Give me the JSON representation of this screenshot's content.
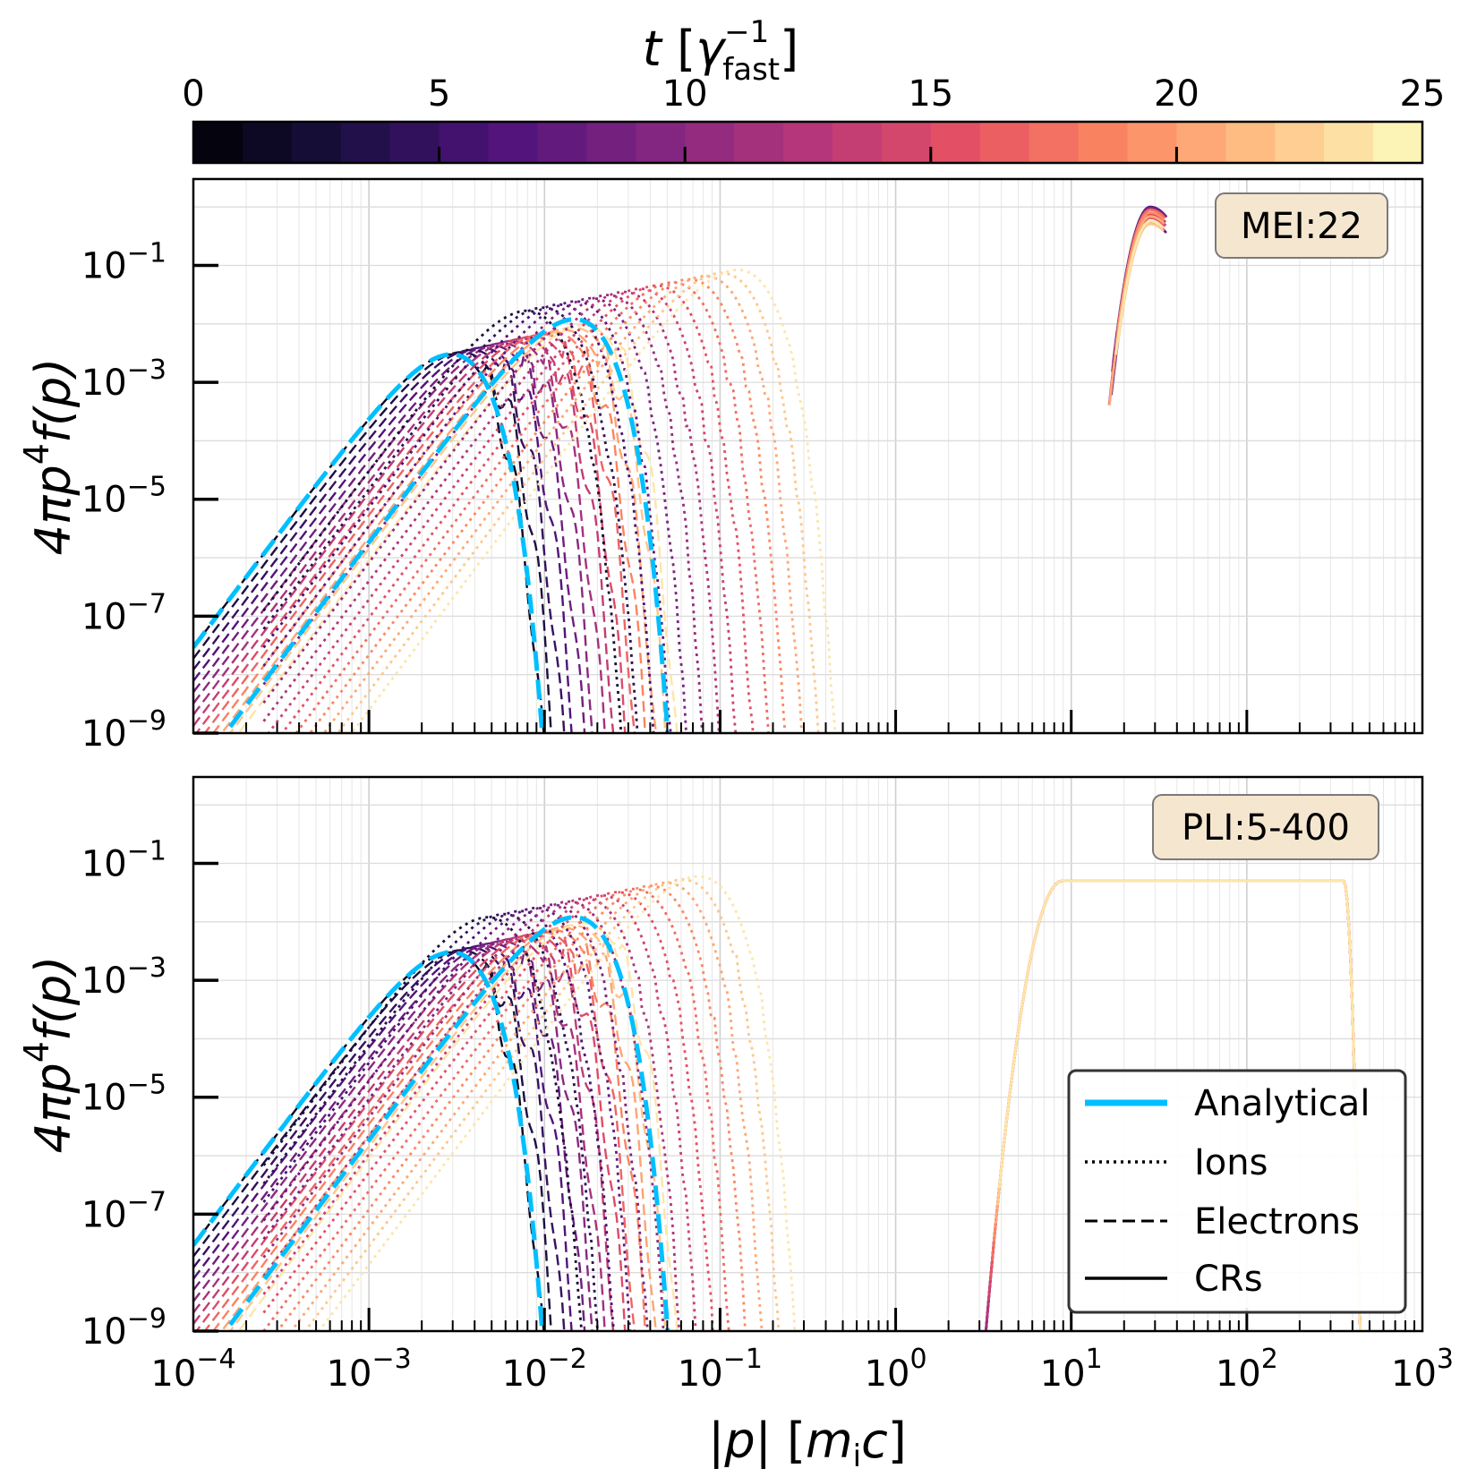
{
  "chart_data": {
    "type": "line",
    "colorbar": {
      "label_base": "t",
      "label_sym": "γ",
      "label_exp": "−1",
      "label_sub": "fast",
      "range": [
        0,
        25
      ],
      "ticks": [
        "0",
        "5",
        "10",
        "15",
        "20",
        "25"
      ],
      "n_steps": 25,
      "colormap": "magma"
    },
    "xlabel_core": "p",
    "xlabel_unit": "m",
    "xlabel_unit_sub": "i",
    "xlabel_unit_tail": "c",
    "ylabel_text": "4πp",
    "ylabel_exp": "4",
    "ylabel_tail": "f(p)",
    "x_scale": "log",
    "y_scale": "log",
    "xlim": [
      0.0001,
      1000
    ],
    "ylim": [
      1e-09,
      3
    ],
    "x_ticks": [
      {
        "base": "10",
        "exp": "−4"
      },
      {
        "base": "10",
        "exp": "−3"
      },
      {
        "base": "10",
        "exp": "−2"
      },
      {
        "base": "10",
        "exp": "−1"
      },
      {
        "base": "10",
        "exp": "0"
      },
      {
        "base": "10",
        "exp": "1"
      },
      {
        "base": "10",
        "exp": "2"
      },
      {
        "base": "10",
        "exp": "3"
      }
    ],
    "y_ticks": [
      {
        "base": "10",
        "exp": "−1"
      },
      {
        "base": "10",
        "exp": "−3"
      },
      {
        "base": "10",
        "exp": "−5"
      },
      {
        "base": "10",
        "exp": "−7"
      },
      {
        "base": "10",
        "exp": "−9"
      }
    ],
    "grid": true,
    "legend": {
      "placement": "lower-right",
      "entries": [
        "Analytical",
        "Ions",
        "Electrons",
        "CRs"
      ],
      "analytical_color": "#00bfff"
    },
    "panels": [
      {
        "badge": "MEI:22",
        "badge_placement": "top-right",
        "electron_thermal_peak": {
          "p": 0.003,
          "value": 0.003
        },
        "ion_thermal_peak": {
          "p": 0.1,
          "value": 0.07
        },
        "cr_population": {
          "p_range": [
            18,
            35
          ],
          "peak_value": 1.0,
          "shape": "narrow-peak"
        }
      },
      {
        "badge": "PLI:5-400",
        "badge_placement": "top-right",
        "electron_thermal_peak": {
          "p": 0.003,
          "value": 0.003
        },
        "ion_thermal_peak": {
          "p": 0.06,
          "value": 0.05
        },
        "cr_population": {
          "p_range": [
            5,
            400
          ],
          "plateau_value": 0.05,
          "shape": "power-law"
        }
      }
    ]
  }
}
